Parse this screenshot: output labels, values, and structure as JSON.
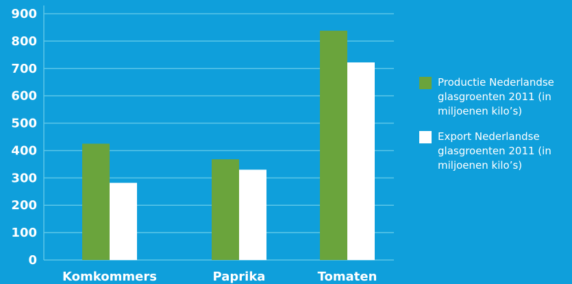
{
  "chart_data": {
    "type": "bar",
    "categories": [
      "Komkommers",
      "Paprika",
      "Tomaten"
    ],
    "series": [
      {
        "name": "Productie Nederlandse glasgroenten 2011 (in miljoenen kilo’s)",
        "values": [
          425,
          368,
          838
        ],
        "color": "#6aa43c"
      },
      {
        "name": "Export Nederlandse glasgroenten 2011 (in miljoenen kilo’s)",
        "values": [
          282,
          330,
          722
        ],
        "color": "#ffffff"
      }
    ],
    "y_ticks": [
      "0",
      "100",
      "200",
      "300",
      "400",
      "500",
      "600",
      "700",
      "800",
      "900"
    ],
    "ylim": [
      0,
      900
    ],
    "grid": true,
    "gridline_color": "#5cc6e8",
    "legend_position": "right",
    "title": "",
    "xlabel": "",
    "ylabel": ""
  }
}
